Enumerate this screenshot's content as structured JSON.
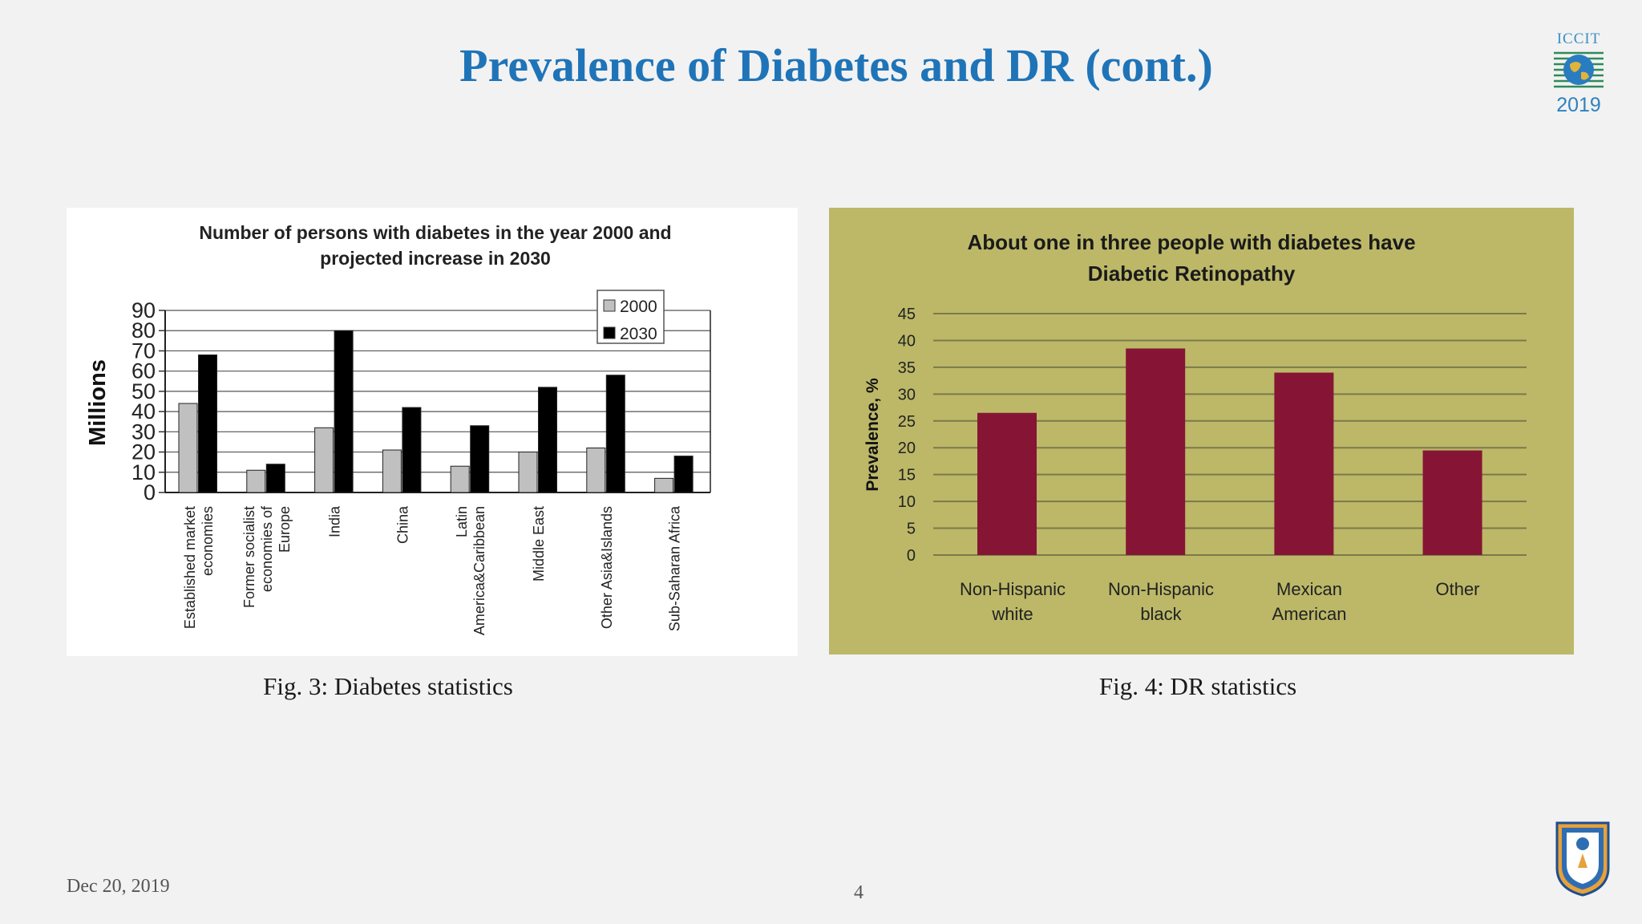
{
  "slide": {
    "title": "Prevalence of Diabetes and DR (cont.)",
    "logo": {
      "text": "ICCIT",
      "year": "2019"
    },
    "footer_date": "Dec 20, 2019",
    "page_number": "4"
  },
  "captions": {
    "fig3": "Fig. 3: Diabetes statistics",
    "fig4": "Fig. 4: DR statistics"
  },
  "colors": {
    "title": "#1f74b8",
    "bar_2000": "#c0c0c0",
    "bar_2030": "#000000",
    "dr_panel_bg": "#bcb868",
    "dr_bar": "#861535"
  },
  "chart_data": [
    {
      "type": "bar",
      "title": "Number of persons with diabetes in the year 2000 and projected increase in 2030",
      "title_lines": [
        "Number of persons with diabetes in the year 2000 and",
        "projected increase in 2030"
      ],
      "ylabel": "Millions",
      "xlabel": "",
      "ylim": [
        0,
        90
      ],
      "yticks": [
        0,
        10,
        20,
        30,
        40,
        50,
        60,
        70,
        80,
        90
      ],
      "grid": true,
      "legend": "top-right",
      "categories": [
        [
          "Established market",
          "economies"
        ],
        [
          "Former socialist",
          "economies of",
          "Europe"
        ],
        [
          "India"
        ],
        [
          "China"
        ],
        [
          "Latin",
          "America&Caribbean"
        ],
        [
          "Middle East"
        ],
        [
          "Other Asia&Islands"
        ],
        [
          "Sub-Saharan Africa"
        ]
      ],
      "series": [
        {
          "name": "2000",
          "values": [
            44,
            11,
            32,
            21,
            13,
            20,
            22,
            7
          ]
        },
        {
          "name": "2030",
          "values": [
            68,
            14,
            80,
            42,
            33,
            52,
            58,
            18
          ]
        }
      ]
    },
    {
      "type": "bar",
      "title": "About one in three people with diabetes have Diabetic Retinopathy",
      "title_lines": [
        "About one in three people with diabetes have",
        "Diabetic Retinopathy"
      ],
      "ylabel": "Prevalence, %",
      "xlabel": "",
      "ylim": [
        0,
        45
      ],
      "yticks": [
        0,
        5,
        10,
        15,
        20,
        25,
        30,
        35,
        40,
        45
      ],
      "grid": true,
      "categories": [
        [
          "Non-Hispanic",
          "white"
        ],
        [
          "Non-Hispanic",
          "black"
        ],
        [
          "Mexican",
          "American"
        ],
        [
          "Other"
        ]
      ],
      "values": [
        26.5,
        38.5,
        34,
        19.5
      ]
    }
  ]
}
